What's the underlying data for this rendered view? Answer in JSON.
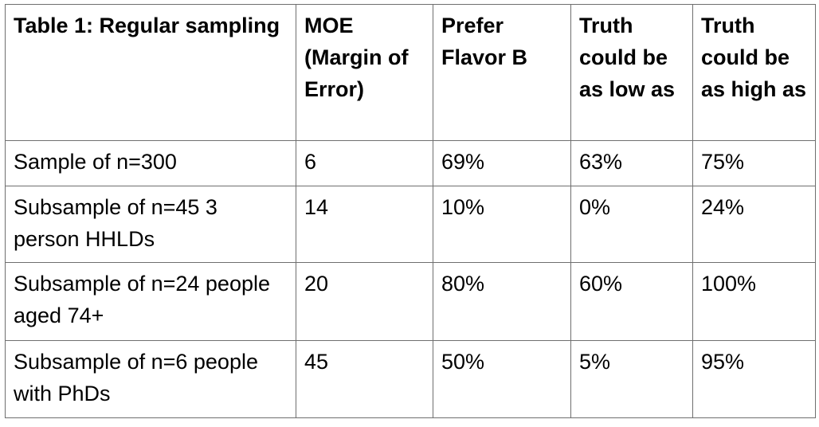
{
  "table": {
    "headers": [
      "Table 1: Regular sampling",
      "MOE (Margin of Error)",
      "Prefer Flavor B",
      "Truth could be as low as",
      "Truth could be as high as"
    ],
    "rows": [
      [
        "Sample of n=300",
        "6",
        "69%",
        "63%",
        "75%"
      ],
      [
        "Subsample of n=45 3 person HHLDs",
        "14",
        "10%",
        "0%",
        "24%"
      ],
      [
        "Subsample of n=24 people aged 74+",
        "20",
        "80%",
        "60%",
        "100%"
      ],
      [
        "Subsample of n=6 people with PhDs",
        "45",
        "50%",
        "5%",
        "95%"
      ]
    ]
  }
}
